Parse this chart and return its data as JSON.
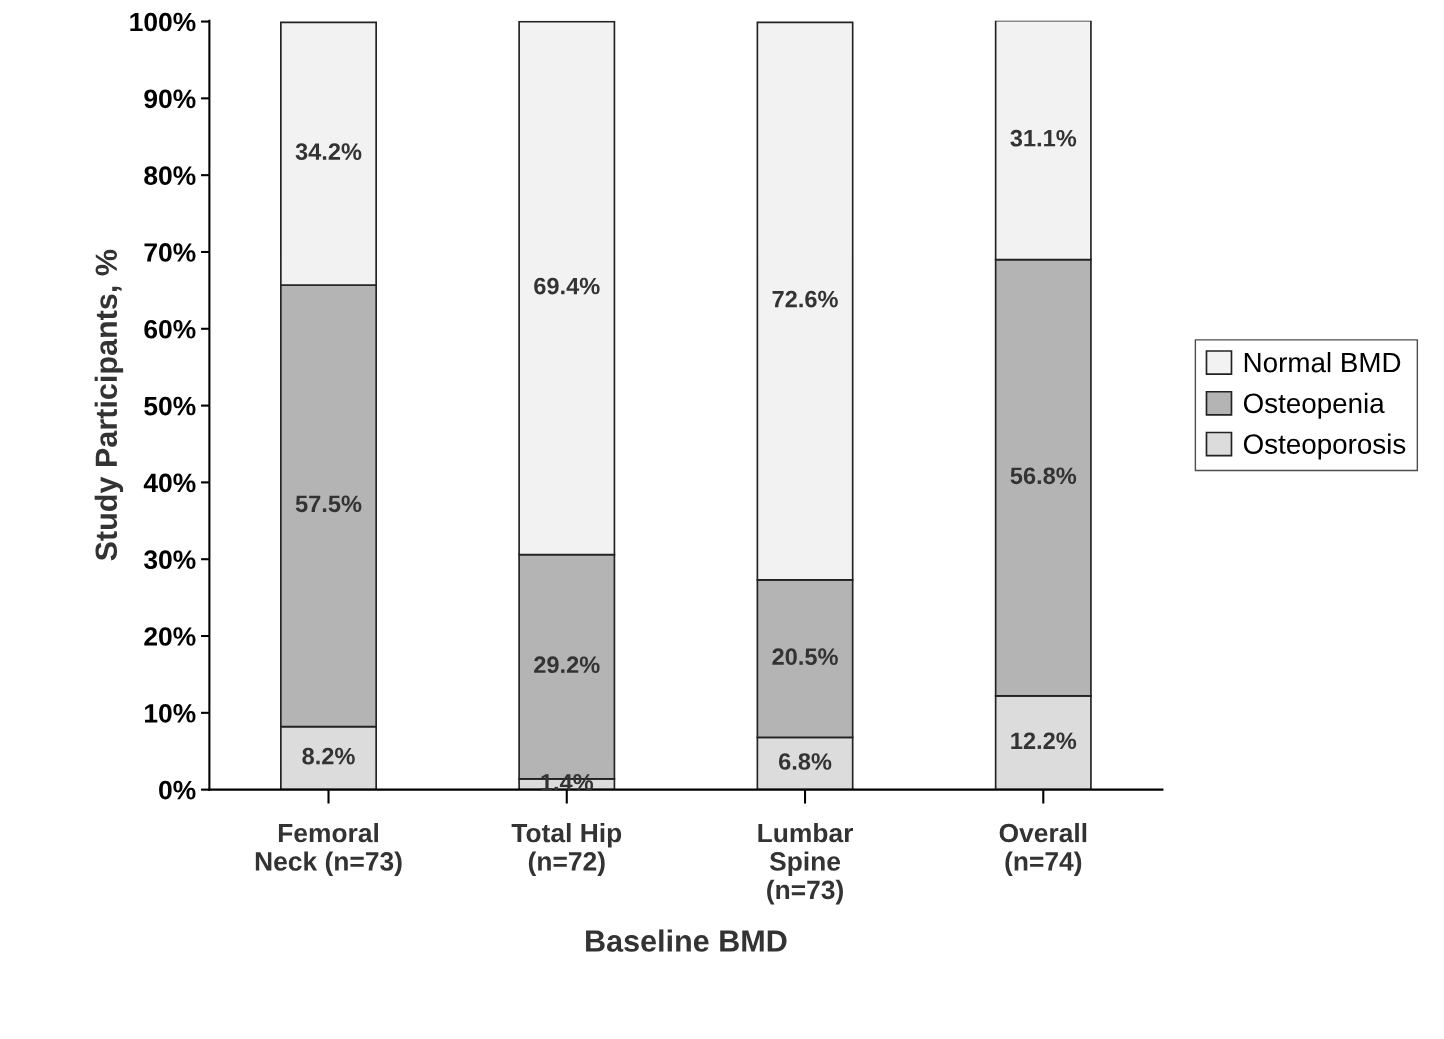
{
  "chart_data": {
    "type": "bar",
    "stacked": true,
    "xlabel": "Baseline BMD",
    "ylabel": "Study Participants, %",
    "categories": [
      "Femoral\nNeck (n=73)",
      "Total Hip\n(n=72)",
      "Lumbar\nSpine\n(n=73)",
      "Overall\n(n=74)"
    ],
    "series": [
      {
        "name": "Osteoporosis",
        "color": "#dcdcdc",
        "values": [
          8.2,
          1.4,
          6.8,
          12.2
        ],
        "value_labels": [
          "8.2%",
          "1.4%",
          "6.8%",
          "12.2%"
        ]
      },
      {
        "name": "Osteopenia",
        "color": "#b4b4b4",
        "values": [
          57.5,
          29.2,
          20.5,
          56.8
        ],
        "value_labels": [
          "57.5%",
          "29.2%",
          "20.5%",
          "56.8%"
        ]
      },
      {
        "name": "Normal BMD",
        "color": "#f2f2f2",
        "values": [
          34.2,
          69.4,
          72.6,
          31.1
        ],
        "value_labels": [
          "34.2%",
          "69.4%",
          "72.6%",
          "31.1%"
        ]
      }
    ],
    "ylim": [
      0,
      100.1
    ],
    "yticks": [
      {
        "value": 0,
        "label": "0%"
      },
      {
        "value": 10,
        "label": "10%"
      },
      {
        "value": 20,
        "label": "20%"
      },
      {
        "value": 30,
        "label": "30%"
      },
      {
        "value": 40,
        "label": "40%"
      },
      {
        "value": 50,
        "label": "50%"
      },
      {
        "value": 60,
        "label": "60%"
      },
      {
        "value": 70,
        "label": "70%"
      },
      {
        "value": 80,
        "label": "80%"
      },
      {
        "value": 90,
        "label": "90%"
      },
      {
        "value": 100,
        "label": "100%"
      }
    ],
    "grid": false,
    "legend": "right"
  }
}
